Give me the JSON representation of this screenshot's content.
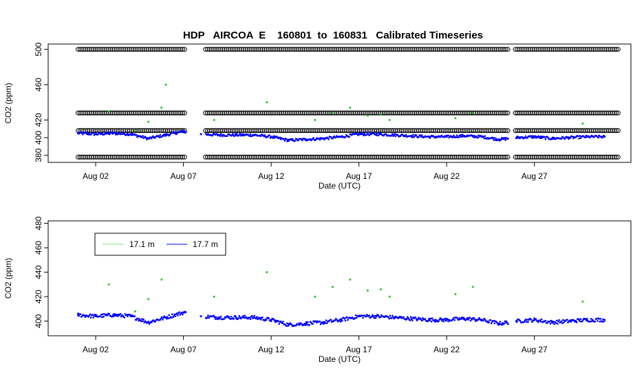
{
  "chart_data": [
    {
      "type": "scatter",
      "title": "HDP   AIRCOA  E    160801  to  160831   Calibrated Timeseries",
      "xlabel": "Date (UTC)",
      "ylabel": "CO2 (ppm)",
      "xlim": [
        "2016-07-30T07:00",
        "2016-09-01T12:00"
      ],
      "ylim": [
        372,
        506
      ],
      "xticks": [
        "Aug 02",
        "Aug 07",
        "Aug 12",
        "Aug 17",
        "Aug 22",
        "Aug 27"
      ],
      "xtick_dates": [
        "2016-08-02",
        "2016-08-07",
        "2016-08-12",
        "2016-08-17",
        "2016-08-22",
        "2016-08-27"
      ],
      "yticks": [
        380,
        400,
        420,
        460,
        500
      ],
      "legend": null,
      "reference_levels": [
        {
          "y": 500,
          "style": "open-circle",
          "color": "#000000"
        },
        {
          "y": 428,
          "style": "open-circle",
          "color": "#000000"
        },
        {
          "y": 408,
          "style": "open-circle",
          "color": "#000000"
        },
        {
          "y": 378,
          "style": "open-circle",
          "color": "#000000"
        }
      ],
      "series": [
        {
          "color": "#0000ff",
          "x": [
            "2016-08-01T00:00",
            "2016-08-02T00:00",
            "2016-08-03T00:00",
            "2016-08-04T00:00",
            "2016-08-05T00:00",
            "2016-08-06T00:00",
            "2016-08-07T00:00",
            "2016-08-08T00:00",
            "2016-08-09T00:00",
            "2016-08-10T00:00",
            "2016-08-11T00:00",
            "2016-08-12T00:00",
            "2016-08-13T00:00",
            "2016-08-14T00:00",
            "2016-08-15T00:00",
            "2016-08-16T00:00",
            "2016-08-17T00:00",
            "2016-08-18T00:00",
            "2016-08-19T00:00",
            "2016-08-20T00:00",
            "2016-08-21T00:00",
            "2016-08-22T00:00",
            "2016-08-23T00:00",
            "2016-08-24T00:00",
            "2016-08-25T00:00",
            "2016-08-26T00:00",
            "2016-08-27T00:00",
            "2016-08-28T00:00",
            "2016-08-29T00:00",
            "2016-08-30T00:00",
            "2016-08-31T00:00"
          ],
          "y": [
            405,
            404,
            405,
            404,
            399,
            403,
            407,
            404,
            403,
            403,
            403,
            401,
            397,
            398,
            399,
            401,
            404,
            404,
            403,
            402,
            401,
            401,
            402,
            401,
            398,
            400,
            401,
            399,
            400,
            401,
            401
          ]
        },
        {
          "color": "#00cc00",
          "x": [
            "2016-08-02T18:00",
            "2016-08-04T06:00",
            "2016-08-05T00:00",
            "2016-08-05T18:00",
            "2016-08-06T00:00",
            "2016-08-08T18:00",
            "2016-08-11T18:00",
            "2016-08-14T12:00",
            "2016-08-15T12:00",
            "2016-08-16T12:00",
            "2016-08-17T12:00",
            "2016-08-18T06:00",
            "2016-08-18T18:00",
            "2016-08-22T12:00",
            "2016-08-23T12:00",
            "2016-08-29T18:00"
          ],
          "y": [
            430,
            408,
            418,
            434,
            460,
            420,
            440,
            420,
            428,
            434,
            425,
            426,
            420,
            422,
            428,
            416
          ]
        }
      ]
    },
    {
      "type": "scatter",
      "title": "",
      "xlabel": "Date (UTC)",
      "ylabel": "CO2 (ppm)",
      "xlim": [
        "2016-07-30T07:00",
        "2016-09-01T12:00"
      ],
      "ylim": [
        388,
        482
      ],
      "xticks": [
        "Aug 02",
        "Aug 07",
        "Aug 12",
        "Aug 17",
        "Aug 22",
        "Aug 27"
      ],
      "xtick_dates": [
        "2016-08-02",
        "2016-08-07",
        "2016-08-12",
        "2016-08-17",
        "2016-08-22",
        "2016-08-27"
      ],
      "yticks": [
        400,
        420,
        440,
        460,
        480
      ],
      "legend": {
        "placement": "top-left",
        "entries": [
          {
            "label": "17.1 m",
            "color": "#00cc00"
          },
          {
            "label": "17.7 m",
            "color": "#0000ff"
          }
        ]
      },
      "series": [
        {
          "name": "17.7 m",
          "color": "#0000ff",
          "x": [
            "2016-08-01T00:00",
            "2016-08-02T00:00",
            "2016-08-03T00:00",
            "2016-08-04T00:00",
            "2016-08-05T00:00",
            "2016-08-06T00:00",
            "2016-08-07T00:00",
            "2016-08-08T00:00",
            "2016-08-09T00:00",
            "2016-08-10T00:00",
            "2016-08-11T00:00",
            "2016-08-12T00:00",
            "2016-08-13T00:00",
            "2016-08-14T00:00",
            "2016-08-15T00:00",
            "2016-08-16T00:00",
            "2016-08-17T00:00",
            "2016-08-18T00:00",
            "2016-08-19T00:00",
            "2016-08-20T00:00",
            "2016-08-21T00:00",
            "2016-08-22T00:00",
            "2016-08-23T00:00",
            "2016-08-24T00:00",
            "2016-08-25T00:00",
            "2016-08-26T00:00",
            "2016-08-27T00:00",
            "2016-08-28T00:00",
            "2016-08-29T00:00",
            "2016-08-30T00:00",
            "2016-08-31T00:00"
          ],
          "y": [
            405,
            404,
            405,
            404,
            399,
            403,
            407,
            404,
            403,
            403,
            403,
            401,
            397,
            398,
            399,
            401,
            404,
            404,
            403,
            402,
            401,
            401,
            402,
            401,
            398,
            400,
            401,
            399,
            400,
            401,
            401
          ]
        },
        {
          "name": "17.1 m",
          "color": "#00cc00",
          "x": [
            "2016-08-02T18:00",
            "2016-08-04T06:00",
            "2016-08-05T00:00",
            "2016-08-05T18:00",
            "2016-08-06T00:00",
            "2016-08-08T18:00",
            "2016-08-11T18:00",
            "2016-08-14T12:00",
            "2016-08-15T12:00",
            "2016-08-16T12:00",
            "2016-08-17T12:00",
            "2016-08-18T06:00",
            "2016-08-18T18:00",
            "2016-08-22T12:00",
            "2016-08-23T12:00",
            "2016-08-29T18:00"
          ],
          "y": [
            430,
            408,
            418,
            434,
            460,
            420,
            440,
            420,
            428,
            434,
            425,
            426,
            420,
            422,
            428,
            416
          ]
        }
      ]
    }
  ]
}
